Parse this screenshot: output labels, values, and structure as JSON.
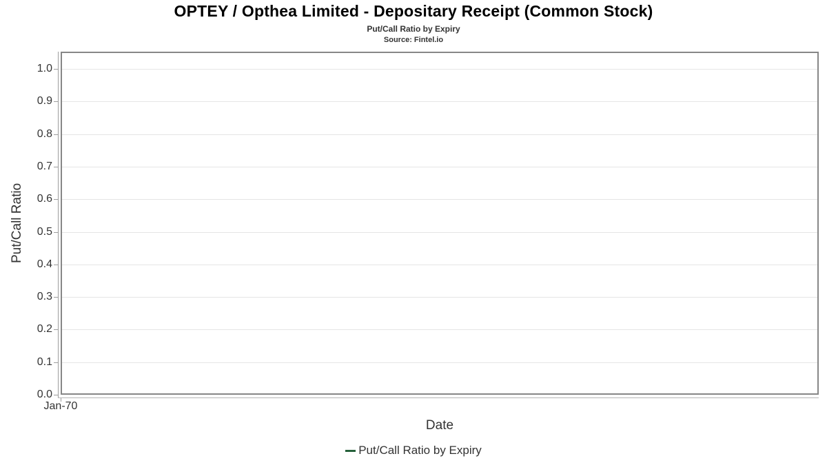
{
  "chart_data": {
    "type": "line",
    "title": "OPTEY / Opthea Limited - Depositary Receipt (Common Stock)",
    "subtitle": "Put/Call Ratio by Expiry",
    "source": "Source: Fintel.io",
    "xlabel": "Date",
    "ylabel": "Put/Call Ratio",
    "ylim": [
      0,
      1.05
    ],
    "grid": true,
    "legend_position": "bottom",
    "y_ticks": [
      {
        "value": 0.0,
        "label": "0.0"
      },
      {
        "value": 0.1,
        "label": "0.1"
      },
      {
        "value": 0.2,
        "label": "0.2"
      },
      {
        "value": 0.3,
        "label": "0.3"
      },
      {
        "value": 0.4,
        "label": "0.4"
      },
      {
        "value": 0.5,
        "label": "0.5"
      },
      {
        "value": 0.6,
        "label": "0.6"
      },
      {
        "value": 0.7,
        "label": "0.7"
      },
      {
        "value": 0.8,
        "label": "0.8"
      },
      {
        "value": 0.9,
        "label": "0.9"
      },
      {
        "value": 1.0,
        "label": "1.0"
      }
    ],
    "x_ticks": [
      {
        "position": 0,
        "label": "Jan-70"
      }
    ],
    "series": [
      {
        "name": "Put/Call Ratio by Expiry",
        "color": "#25613b",
        "x": [],
        "values": []
      }
    ],
    "colors": {
      "plot_border": "#868686",
      "grid": "#e5e5e5",
      "axis_line": "#9c9c9c",
      "tick_text": "#333333",
      "axis_title_text": "#333333",
      "title_text": "#000000"
    }
  }
}
